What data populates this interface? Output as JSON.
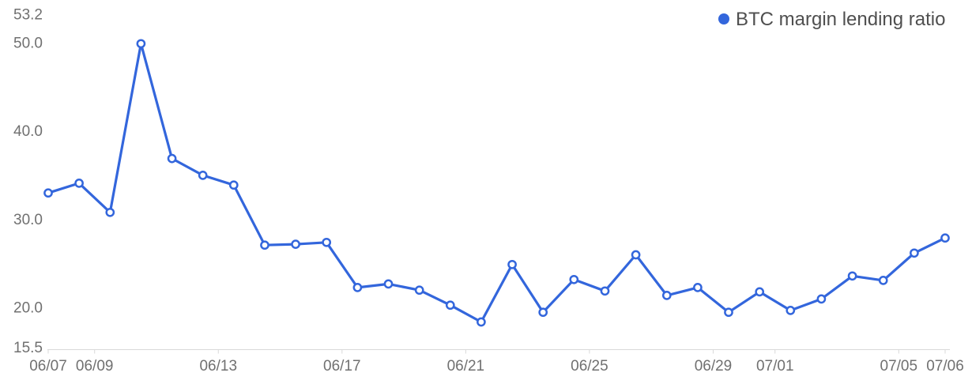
{
  "legend": {
    "label": "BTC margin lending ratio"
  },
  "colors": {
    "line": "#3366DC",
    "marker_fill": "#FFFFFF",
    "axis_label_text": "#707070",
    "legend_text": "#4F4F4F",
    "axis_line": "#D9D9D9",
    "background": "#FFFFFF"
  },
  "chart_data": {
    "type": "line",
    "title": "",
    "xlabel": "",
    "ylabel": "",
    "grid": false,
    "legend_position": "top-right",
    "marker": "hollow-circle",
    "ylim": [
      15.5,
      53.2
    ],
    "y_tick_labels": [
      "53.2",
      "50.0",
      "40.0",
      "30.0",
      "20.0",
      "15.5"
    ],
    "y_tick_values": [
      53.2,
      50.0,
      40.0,
      30.0,
      20.0,
      15.5
    ],
    "x_tick_labels": [
      "06/07",
      "06/09",
      "06/13",
      "06/17",
      "06/21",
      "06/25",
      "06/29",
      "07/01",
      "07/05",
      "07/06"
    ],
    "categories": [
      "06/07",
      "06/08",
      "06/09",
      "06/10",
      "06/11",
      "06/12",
      "06/13",
      "06/14",
      "06/15",
      "06/16",
      "06/17",
      "06/18",
      "06/19",
      "06/20",
      "06/21",
      "06/22",
      "06/23",
      "06/24",
      "06/25",
      "06/26",
      "06/27",
      "06/28",
      "06/29",
      "06/30",
      "07/01",
      "07/02",
      "07/03",
      "07/04",
      "07/05",
      "07/06"
    ],
    "series": [
      {
        "name": "BTC margin lending ratio",
        "values": [
          33.1,
          34.2,
          30.9,
          50.0,
          37.0,
          35.1,
          34.0,
          27.2,
          27.3,
          27.5,
          22.4,
          22.8,
          22.1,
          20.4,
          18.5,
          25.0,
          19.6,
          23.3,
          22.0,
          26.1,
          21.5,
          22.4,
          19.6,
          21.9,
          19.8,
          21.1,
          23.7,
          23.2,
          26.3,
          28.0
        ]
      }
    ]
  }
}
